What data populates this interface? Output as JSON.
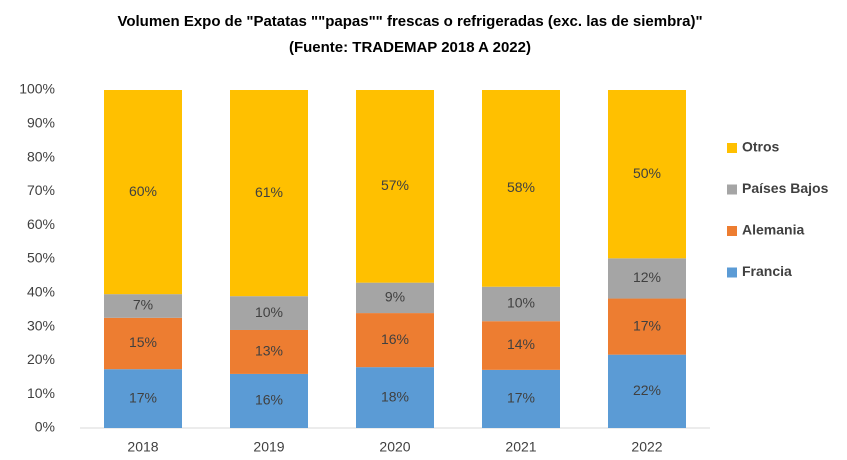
{
  "chart_data": {
    "type": "stacked_bar_percent",
    "title": [
      "Volumen Expo de \"Patatas \"\"papas\"\" frescas o refrigeradas (exc. las de siembra)\"",
      "(Fuente: TRADEMAP 2018 A 2022)"
    ],
    "categories": [
      "2018",
      "2019",
      "2020",
      "2021",
      "2022"
    ],
    "series": [
      {
        "name": "Francia",
        "color": "#5b9bd5",
        "values": [
          17.4,
          16,
          18,
          17.2,
          21.7
        ],
        "value_labels": [
          "17%",
          "16%",
          "18%",
          "17%",
          "22%"
        ]
      },
      {
        "name": "Alemania",
        "color": "#ed7d31",
        "values": [
          15.2,
          13,
          16,
          14.4,
          16.6
        ],
        "value_labels": [
          "15%",
          "13%",
          "16%",
          "14%",
          "17%"
        ]
      },
      {
        "name": "Países Bajos",
        "color": "#a5a5a5",
        "values": [
          7.0,
          10,
          9,
          10.2,
          11.9
        ],
        "value_labels": [
          "7%",
          "10%",
          "9%",
          "10%",
          "12%"
        ]
      },
      {
        "name": "Otros",
        "color": "#ffc000",
        "values": [
          60.4,
          61,
          57,
          58.2,
          49.8
        ],
        "value_labels": [
          "60%",
          "61%",
          "57%",
          "58%",
          "50%"
        ]
      }
    ],
    "ylim": [
      0,
      100
    ],
    "yticks": [
      {
        "value": 0,
        "label": "0%"
      },
      {
        "value": 10,
        "label": "10%"
      },
      {
        "value": 20,
        "label": "20%"
      },
      {
        "value": 30,
        "label": "30%"
      },
      {
        "value": 40,
        "label": "40%"
      },
      {
        "value": 50,
        "label": "50%"
      },
      {
        "value": 60,
        "label": "60%"
      },
      {
        "value": 70,
        "label": "70%"
      },
      {
        "value": 80,
        "label": "80%"
      },
      {
        "value": 90,
        "label": "90%"
      },
      {
        "value": 100,
        "label": "100%"
      }
    ],
    "legend": "right"
  }
}
